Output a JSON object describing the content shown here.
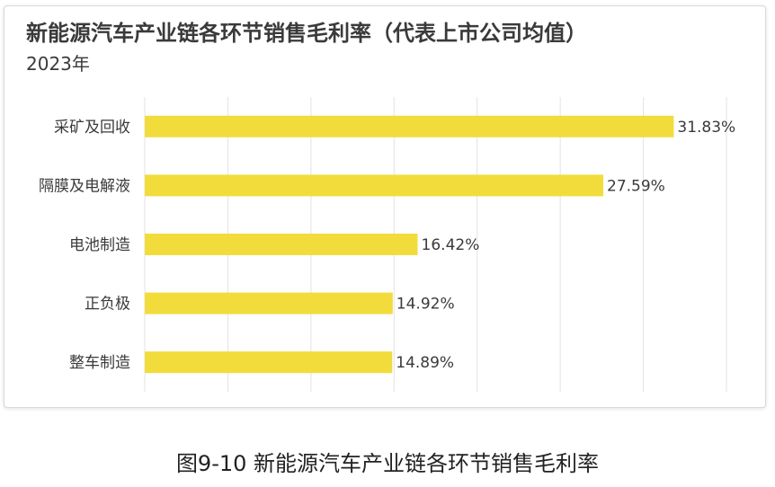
{
  "chart_title": "新能源汽车产业链各环节销售毛利率（代表上市公司均值）",
  "chart_subtitle": "2023年",
  "caption": "图9-10 新能源汽车产业链各环节销售毛利率",
  "colors": {
    "bar": "#f2dc3c",
    "grid": "#e3e3e3",
    "text": "#3a3a3a"
  },
  "chart_data": {
    "type": "bar",
    "orientation": "horizontal",
    "categories": [
      "采矿及回收",
      "隔膜及电解液",
      "电池制造",
      "正负极",
      "整车制造"
    ],
    "values": [
      31.83,
      27.59,
      16.42,
      14.92,
      14.89
    ],
    "value_labels": [
      "31.83%",
      "27.59%",
      "16.42%",
      "14.92%",
      "14.89%"
    ],
    "xlim": [
      0,
      35
    ],
    "grid": true,
    "legend": "none"
  }
}
